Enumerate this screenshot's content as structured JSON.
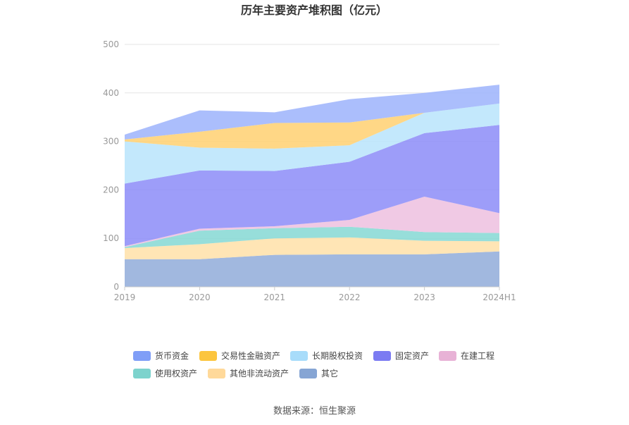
{
  "chart_data": {
    "type": "area",
    "stacked": true,
    "title": "历年主要资产堆积图（亿元）",
    "categories": [
      "2019",
      "2020",
      "2021",
      "2022",
      "2023",
      "2024H1"
    ],
    "ylim": [
      0,
      500
    ],
    "yticks": [
      0,
      100,
      200,
      300,
      400,
      500
    ],
    "grid": true,
    "legend_position": "bottom",
    "series": [
      {
        "name": "其它",
        "color": "#91acd9",
        "values": [
          57,
          57,
          66,
          67,
          67,
          73
        ]
      },
      {
        "name": "其他非流动资产",
        "color": "#ffe0a8",
        "values": [
          23,
          31,
          34,
          35,
          28,
          21
        ]
      },
      {
        "name": "使用权资产",
        "color": "#85d8d3",
        "values": [
          2,
          28,
          21,
          22,
          18,
          17
        ]
      },
      {
        "name": "在建工程",
        "color": "#edbfdf",
        "values": [
          2,
          4,
          4,
          14,
          73,
          41
        ]
      },
      {
        "name": "固定资产",
        "color": "#8c8cf8",
        "values": [
          129,
          120,
          114,
          120,
          131,
          182
        ]
      },
      {
        "name": "长期股权投资",
        "color": "#b8e4fb",
        "values": [
          87,
          47,
          46,
          34,
          42,
          44
        ]
      },
      {
        "name": "交易性金融资产",
        "color": "#ffd071",
        "values": [
          4,
          33,
          53,
          47,
          0,
          0
        ]
      },
      {
        "name": "货币资金",
        "color": "#9cb3fb",
        "values": [
          10,
          44,
          22,
          48,
          41,
          39
        ]
      }
    ],
    "legend_order": [
      "货币资金",
      "交易性金融资产",
      "长期股权投资",
      "固定资产",
      "在建工程",
      "使用权资产",
      "其他非流动资产",
      "其它"
    ],
    "legend_colors": {
      "货币资金": "#7f9ef7",
      "交易性金融资产": "#fcc53e",
      "长期股权投资": "#a8dcfa",
      "固定资产": "#7b7bf2",
      "在建工程": "#e8b2d6",
      "使用权资产": "#7dd3cd",
      "其他非流动资产": "#ffd99a",
      "其它": "#86a5d4"
    }
  },
  "footer": {
    "source": "数据来源：恒生聚源"
  }
}
